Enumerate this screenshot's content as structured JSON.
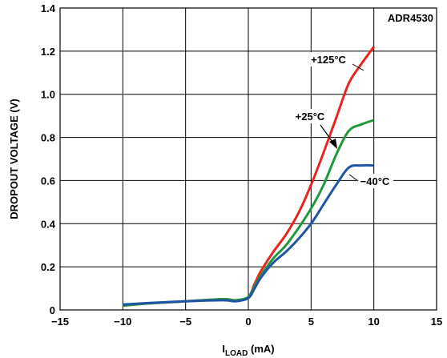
{
  "chart_data": {
    "type": "line",
    "title": "ADR4530",
    "xlabel_main": "I",
    "xlabel_sub": "LOAD",
    "xlabel_unit": " (mA)",
    "ylabel": "DROPOUT VOLTAGE (V)",
    "xlim": [
      -15,
      15
    ],
    "ylim": [
      0,
      1.4
    ],
    "x_ticks": [
      "−15",
      "−10",
      "−5",
      "0",
      "5",
      "10",
      "15"
    ],
    "x_tick_values": [
      -15,
      -10,
      -5,
      0,
      5,
      10,
      15
    ],
    "y_ticks": [
      "0",
      "0.2",
      "0.4",
      "0.6",
      "0.8",
      "1.0",
      "1.2",
      "1.4"
    ],
    "y_tick_values": [
      0,
      0.2,
      0.4,
      0.6,
      0.8,
      1.0,
      1.2,
      1.4
    ],
    "grid": true,
    "series": [
      {
        "name": "+125°C",
        "color": "#e8251f",
        "points": [
          [
            -10,
            0.02
          ],
          [
            -8,
            0.03
          ],
          [
            -5,
            0.04
          ],
          [
            -2,
            0.05
          ],
          [
            -1,
            0.045
          ],
          [
            0,
            0.06
          ],
          [
            0.5,
            0.12
          ],
          [
            1,
            0.18
          ],
          [
            2,
            0.27
          ],
          [
            3,
            0.35
          ],
          [
            4,
            0.45
          ],
          [
            5,
            0.58
          ],
          [
            6,
            0.73
          ],
          [
            7,
            0.89
          ],
          [
            8,
            1.05
          ],
          [
            9,
            1.14
          ],
          [
            10,
            1.22
          ]
        ]
      },
      {
        "name": "+25°C",
        "color": "#1e9a3c",
        "points": [
          [
            -10,
            0.02
          ],
          [
            -8,
            0.03
          ],
          [
            -5,
            0.04
          ],
          [
            -2,
            0.05
          ],
          [
            -1,
            0.045
          ],
          [
            0,
            0.06
          ],
          [
            0.5,
            0.11
          ],
          [
            1,
            0.16
          ],
          [
            2,
            0.24
          ],
          [
            3,
            0.3
          ],
          [
            4,
            0.38
          ],
          [
            5,
            0.47
          ],
          [
            6,
            0.58
          ],
          [
            7,
            0.72
          ],
          [
            8,
            0.83
          ],
          [
            9,
            0.86
          ],
          [
            10,
            0.88
          ]
        ]
      },
      {
        "name": "−40°C",
        "color": "#1f55a6",
        "points": [
          [
            -10,
            0.025
          ],
          [
            -8,
            0.032
          ],
          [
            -5,
            0.04
          ],
          [
            -2,
            0.045
          ],
          [
            -1,
            0.04
          ],
          [
            0,
            0.055
          ],
          [
            0.5,
            0.1
          ],
          [
            1,
            0.15
          ],
          [
            2,
            0.22
          ],
          [
            3,
            0.27
          ],
          [
            4,
            0.33
          ],
          [
            5,
            0.4
          ],
          [
            6,
            0.49
          ],
          [
            7,
            0.58
          ],
          [
            8,
            0.66
          ],
          [
            9,
            0.67
          ],
          [
            10,
            0.67
          ]
        ]
      }
    ],
    "annotations": [
      {
        "text": "+125°C",
        "series": 0
      },
      {
        "text": "+25°C",
        "series": 1
      },
      {
        "text": "−40°C",
        "series": 2
      }
    ]
  }
}
